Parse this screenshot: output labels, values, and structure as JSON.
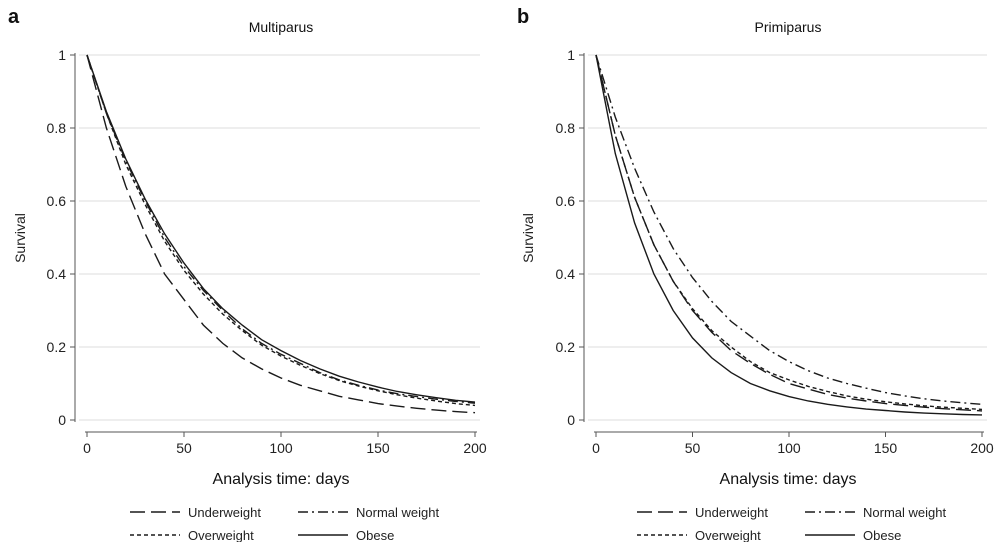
{
  "figure": {
    "panel_labels": [
      "a",
      "b"
    ]
  },
  "chart_data": [
    {
      "type": "line",
      "panel": "a",
      "title": "Multiparus",
      "xlabel": "Analysis time: days",
      "ylabel": "Survival",
      "xlim": [
        0,
        200
      ],
      "ylim": [
        0,
        1
      ],
      "x_ticks": [
        0,
        50,
        100,
        150,
        200
      ],
      "y_ticks": [
        0,
        0.2,
        0.4,
        0.6,
        0.8,
        1
      ],
      "y_tick_labels": [
        "0",
        "0.2",
        "0.4",
        "0.6",
        "0.8",
        "1"
      ],
      "grid": "horizontal",
      "legend_position": "bottom",
      "x": [
        0,
        10,
        20,
        30,
        40,
        50,
        60,
        70,
        80,
        90,
        100,
        110,
        120,
        130,
        140,
        150,
        160,
        170,
        180,
        190,
        200
      ],
      "series": [
        {
          "name": "Underweight",
          "style": "long-dash",
          "values": [
            1.0,
            0.8,
            0.64,
            0.51,
            0.4,
            0.33,
            0.26,
            0.21,
            0.17,
            0.14,
            0.115,
            0.095,
            0.08,
            0.065,
            0.055,
            0.045,
            0.038,
            0.032,
            0.027,
            0.023,
            0.02
          ]
        },
        {
          "name": "Normal weight",
          "style": "dash-dot",
          "values": [
            1.0,
            0.84,
            0.71,
            0.6,
            0.5,
            0.42,
            0.355,
            0.3,
            0.25,
            0.21,
            0.18,
            0.155,
            0.13,
            0.11,
            0.095,
            0.082,
            0.072,
            0.064,
            0.057,
            0.051,
            0.046
          ]
        },
        {
          "name": "Overweight",
          "style": "short-dash",
          "values": [
            1.0,
            0.84,
            0.7,
            0.59,
            0.49,
            0.41,
            0.345,
            0.29,
            0.245,
            0.205,
            0.175,
            0.15,
            0.127,
            0.108,
            0.093,
            0.08,
            0.069,
            0.06,
            0.052,
            0.045,
            0.04
          ]
        },
        {
          "name": "Obese",
          "style": "solid",
          "values": [
            1.0,
            0.845,
            0.715,
            0.605,
            0.51,
            0.43,
            0.36,
            0.305,
            0.26,
            0.22,
            0.19,
            0.163,
            0.14,
            0.12,
            0.104,
            0.09,
            0.078,
            0.069,
            0.061,
            0.054,
            0.049
          ]
        }
      ]
    },
    {
      "type": "line",
      "panel": "b",
      "title": "Primiparus",
      "xlabel": "Analysis time: days",
      "ylabel": "Survival",
      "xlim": [
        0,
        200
      ],
      "ylim": [
        0,
        1
      ],
      "x_ticks": [
        0,
        50,
        100,
        150,
        200
      ],
      "y_ticks": [
        0,
        0.2,
        0.4,
        0.6,
        0.8,
        1
      ],
      "y_tick_labels": [
        "0",
        "0.2",
        "0.4",
        "0.6",
        "0.8",
        "1"
      ],
      "grid": "horizontal",
      "legend_position": "bottom",
      "x": [
        0,
        10,
        20,
        30,
        40,
        50,
        60,
        70,
        80,
        90,
        100,
        110,
        120,
        130,
        140,
        150,
        160,
        170,
        180,
        190,
        200
      ],
      "series": [
        {
          "name": "Underweight",
          "style": "long-dash",
          "values": [
            1.0,
            0.78,
            0.61,
            0.48,
            0.38,
            0.3,
            0.24,
            0.19,
            0.155,
            0.125,
            0.1,
            0.085,
            0.07,
            0.06,
            0.052,
            0.045,
            0.04,
            0.035,
            0.031,
            0.028,
            0.025
          ]
        },
        {
          "name": "Normal weight",
          "style": "dash-dot",
          "values": [
            1.0,
            0.83,
            0.69,
            0.57,
            0.47,
            0.39,
            0.325,
            0.27,
            0.23,
            0.19,
            0.16,
            0.135,
            0.115,
            0.1,
            0.087,
            0.075,
            0.066,
            0.058,
            0.052,
            0.047,
            0.043
          ]
        },
        {
          "name": "Overweight",
          "style": "short-dash",
          "values": [
            1.0,
            0.78,
            0.61,
            0.48,
            0.38,
            0.305,
            0.245,
            0.2,
            0.16,
            0.13,
            0.11,
            0.092,
            0.078,
            0.066,
            0.057,
            0.05,
            0.044,
            0.039,
            0.035,
            0.032,
            0.029
          ]
        },
        {
          "name": "Obese",
          "style": "solid",
          "values": [
            1.0,
            0.73,
            0.54,
            0.4,
            0.3,
            0.225,
            0.17,
            0.13,
            0.1,
            0.08,
            0.064,
            0.052,
            0.043,
            0.036,
            0.03,
            0.026,
            0.022,
            0.019,
            0.017,
            0.015,
            0.014
          ]
        }
      ]
    }
  ]
}
